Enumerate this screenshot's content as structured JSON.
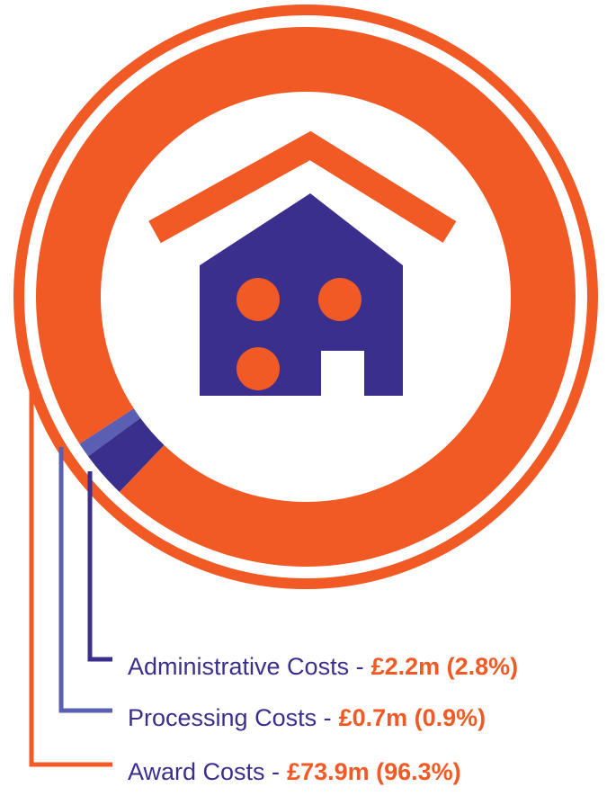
{
  "chart_data": {
    "type": "pie",
    "donut": true,
    "categories": [
      "Administrative Costs -",
      "Processing Costs -",
      "Award Costs -"
    ],
    "values": [
      2.8,
      0.9,
      96.3
    ],
    "value_labels": [
      "£2.2m (2.8%)",
      "£0.7m (0.9%)",
      "£73.9m (96.3%)"
    ],
    "colors": [
      "#3b2f8e",
      "#5a5fb4",
      "#f15a24"
    ]
  }
}
